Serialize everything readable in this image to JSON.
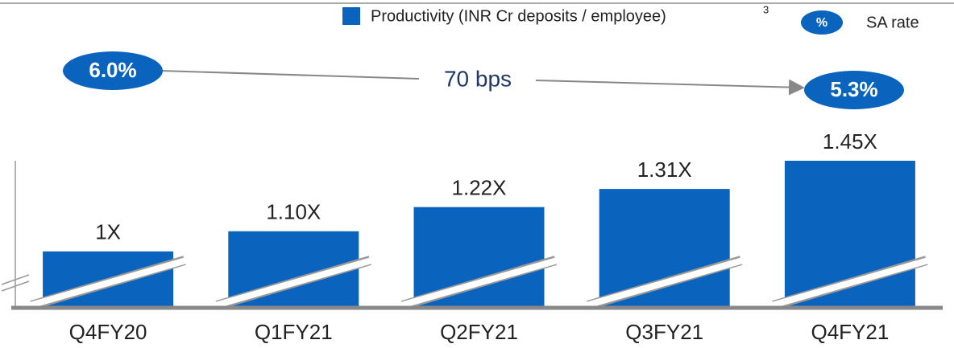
{
  "chart_data": {
    "type": "bar",
    "categories": [
      "Q4FY20",
      "Q1FY21",
      "Q2FY21",
      "Q3FY21",
      "Q4FY21"
    ],
    "series": [
      {
        "name": "Productivity (INR Cr deposits / employee)",
        "footnote": "3",
        "color": "#0a64be",
        "values": [
          1,
          1.1,
          1.22,
          1.31,
          1.45
        ],
        "value_labels": [
          "1X",
          "1.10X",
          "1.22X",
          "1.31X",
          "1.45X"
        ]
      }
    ],
    "ylim": [
      0.72,
      1.45
    ],
    "legend_marker_label": "%",
    "legend_marker_name": "SA rate",
    "annotations": {
      "start": "6.0%",
      "end": "5.3%",
      "change": "70 bps"
    }
  }
}
